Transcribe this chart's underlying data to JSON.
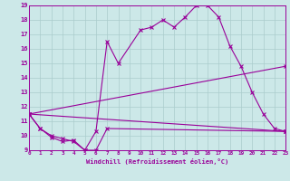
{
  "xlabel": "Windchill (Refroidissement éolien,°C)",
  "bg_color": "#cce8e8",
  "line_color": "#990099",
  "grid_color": "#aacccc",
  "xlim": [
    0,
    23
  ],
  "ylim": [
    9,
    19
  ],
  "xticks": [
    0,
    1,
    2,
    3,
    4,
    5,
    6,
    7,
    8,
    9,
    10,
    11,
    12,
    13,
    14,
    15,
    16,
    17,
    18,
    19,
    20,
    21,
    22,
    23
  ],
  "yticks": [
    9,
    10,
    11,
    12,
    13,
    14,
    15,
    16,
    17,
    18,
    19
  ],
  "series1": [
    [
      0,
      11.5
    ],
    [
      1,
      10.5
    ],
    [
      2,
      10.0
    ],
    [
      3,
      9.8
    ],
    [
      4,
      9.6
    ],
    [
      5,
      9.0
    ],
    [
      6,
      10.3
    ],
    [
      7,
      16.5
    ],
    [
      8,
      15.0
    ],
    [
      10,
      17.3
    ],
    [
      11,
      17.5
    ],
    [
      12,
      18.0
    ],
    [
      13,
      17.5
    ],
    [
      14,
      18.2
    ],
    [
      15,
      19.0
    ],
    [
      16,
      19.0
    ],
    [
      17,
      18.2
    ],
    [
      18,
      16.2
    ],
    [
      19,
      14.8
    ],
    [
      20,
      13.0
    ],
    [
      21,
      11.5
    ],
    [
      22,
      10.5
    ],
    [
      23,
      10.3
    ]
  ],
  "series2": [
    [
      0,
      11.5
    ],
    [
      1,
      10.5
    ],
    [
      2,
      9.9
    ],
    [
      3,
      9.6
    ],
    [
      4,
      9.7
    ],
    [
      5,
      9.0
    ],
    [
      6,
      9.0
    ],
    [
      7,
      10.5
    ],
    [
      23,
      10.3
    ]
  ],
  "series3": [
    [
      0,
      11.5
    ],
    [
      23,
      14.8
    ]
  ],
  "series4": [
    [
      0,
      11.5
    ],
    [
      23,
      10.3
    ]
  ]
}
